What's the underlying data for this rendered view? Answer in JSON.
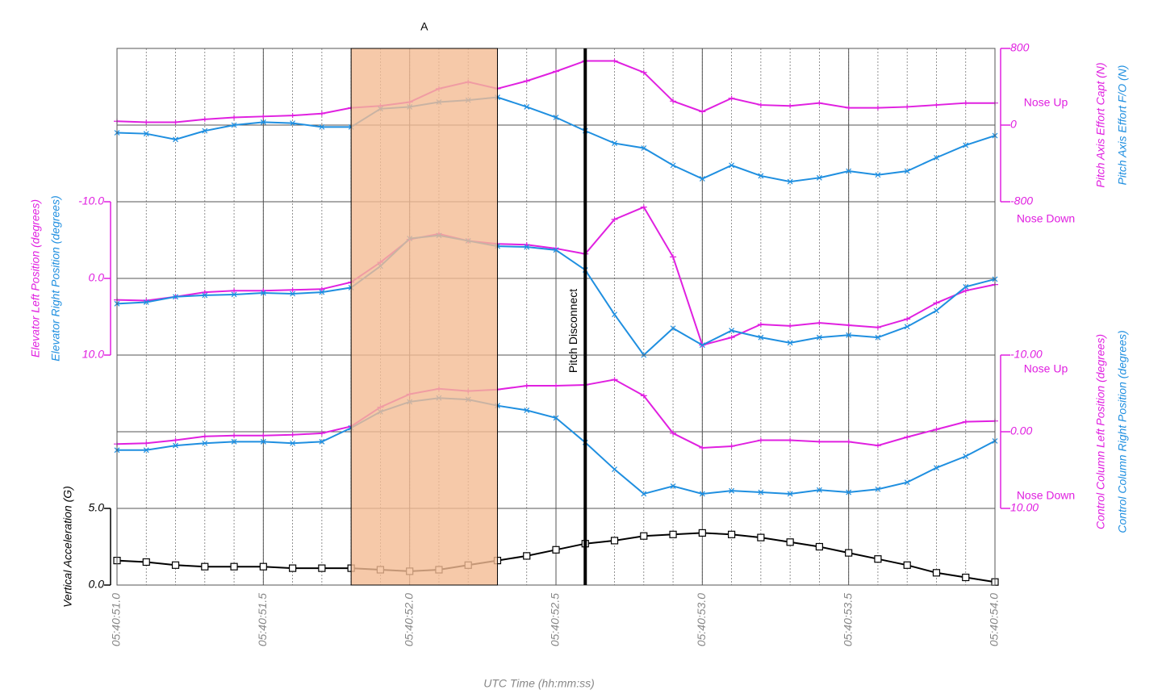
{
  "chart_data": {
    "type": "line",
    "x": [
      51.0,
      51.1,
      51.2,
      51.3,
      51.4,
      51.5,
      51.6,
      51.7,
      51.8,
      51.9,
      52.0,
      52.1,
      52.2,
      52.3,
      52.4,
      52.5,
      52.6,
      52.7,
      52.8,
      52.9,
      53.0,
      53.1,
      53.2,
      53.3,
      53.4,
      53.5,
      53.6,
      53.7,
      53.8,
      53.9,
      54.0
    ],
    "xlim": [
      51.0,
      54.0
    ],
    "xticks": [
      {
        "value": 51.0,
        "label": "05:40:51.0"
      },
      {
        "value": 51.5,
        "label": "05:40:51.5"
      },
      {
        "value": 52.0,
        "label": "05:40:52.0"
      },
      {
        "value": 52.5,
        "label": "05:40:52.5"
      },
      {
        "value": 53.0,
        "label": "05:40:53.0"
      },
      {
        "value": 53.5,
        "label": "05:40:53.5"
      },
      {
        "value": 54.0,
        "label": "05:40:54.0"
      }
    ],
    "x_label": "UTC Time (hh:mm:ss)",
    "highlight": {
      "xlim": [
        51.8,
        52.3
      ],
      "label": "A",
      "color": "#f4bc94"
    },
    "event": {
      "x": 52.6,
      "label": "Pitch Disconnect"
    },
    "panels": [
      {
        "axis_side": "right",
        "axis_color": "#e020e0",
        "ylim": [
          -800,
          800
        ],
        "yticks": [
          -800,
          0,
          800
        ],
        "annotations": [
          "Nose Up",
          "Nose Down"
        ],
        "series": [
          {
            "name": "Pitch Axis Effort Capt (N)",
            "color": "#e020e0",
            "marker": "plus",
            "values": [
              40,
              30,
              30,
              60,
              80,
              90,
              100,
              120,
              180,
              200,
              240,
              380,
              450,
              380,
              460,
              560,
              670,
              670,
              550,
              250,
              140,
              280,
              210,
              200,
              230,
              180,
              180,
              190,
              210,
              230,
              230
            ]
          },
          {
            "name": "Pitch Axis Effort F/O (N)",
            "color": "#1f8fe0",
            "marker": "x",
            "values": [
              -80,
              -90,
              -150,
              -60,
              0,
              30,
              20,
              -20,
              -20,
              170,
              190,
              240,
              260,
              290,
              190,
              80,
              -60,
              -190,
              -240,
              -420,
              -560,
              -420,
              -530,
              -590,
              -550,
              -480,
              -520,
              -480,
              -340,
              -210,
              -110
            ]
          }
        ]
      },
      {
        "axis_side": "left",
        "axis_color": "#e020e0",
        "ylim": [
          10,
          -10
        ],
        "yticks": [
          {
            "value": -10,
            "label": "-10.0"
          },
          {
            "value": 0,
            "label": "0.0"
          },
          {
            "value": 10,
            "label": "10.0"
          }
        ],
        "series": [
          {
            "name": "Elevator Left Position (degrees)",
            "color": "#e020e0",
            "marker": "plus",
            "values": [
              2.8,
              2.9,
              2.4,
              1.8,
              1.6,
              1.6,
              1.5,
              1.4,
              0.5,
              -2.1,
              -5.1,
              -5.8,
              -4.9,
              -4.5,
              -4.4,
              -3.9,
              -3.2,
              -7.7,
              -9.3,
              -2.8,
              8.7,
              7.7,
              6.0,
              6.2,
              5.8,
              6.1,
              6.4,
              5.3,
              3.2,
              1.6,
              0.8
            ]
          },
          {
            "name": "Elevator Right Position (degrees)",
            "color": "#1f8fe0",
            "marker": "x",
            "values": [
              3.3,
              3.1,
              2.4,
              2.2,
              2.1,
              1.9,
              2.0,
              1.8,
              1.2,
              -1.6,
              -5.2,
              -5.6,
              -4.9,
              -4.2,
              -4.1,
              -3.7,
              -1.1,
              4.7,
              10.0,
              6.5,
              8.7,
              6.8,
              7.7,
              8.4,
              7.7,
              7.4,
              7.7,
              6.3,
              4.2,
              1.1,
              0.1
            ]
          }
        ]
      },
      {
        "axis_side": "right",
        "axis_color": "#e020e0",
        "ylim": [
          10,
          -10
        ],
        "yticks": [
          {
            "value": -10,
            "label": "-10.00"
          },
          {
            "value": 0,
            "label": "0.00"
          },
          {
            "value": 10,
            "label": "10.00"
          }
        ],
        "annotations": [
          "Nose Up",
          "Nose Down"
        ],
        "series": [
          {
            "name": "Control Column Left Position (degrees)",
            "color": "#e020e0",
            "marker": "plus",
            "values": [
              1.6,
              1.5,
              1.1,
              0.6,
              0.5,
              0.5,
              0.4,
              0.2,
              -0.7,
              -3.2,
              -4.9,
              -5.6,
              -5.3,
              -5.5,
              -6.0,
              -6.0,
              -6.1,
              -6.8,
              -4.7,
              0.2,
              2.1,
              1.9,
              1.1,
              1.1,
              1.3,
              1.3,
              1.8,
              0.7,
              -0.3,
              -1.3,
              -1.4
            ]
          },
          {
            "name": "Control Column Right Position (degrees)",
            "color": "#1f8fe0",
            "marker": "x",
            "values": [
              2.4,
              2.4,
              1.8,
              1.5,
              1.3,
              1.3,
              1.5,
              1.3,
              -0.5,
              -2.6,
              -3.9,
              -4.4,
              -4.2,
              -3.4,
              -2.8,
              -1.8,
              1.4,
              4.9,
              8.1,
              7.1,
              8.1,
              7.7,
              7.9,
              8.1,
              7.6,
              7.9,
              7.5,
              6.6,
              4.7,
              3.2,
              1.2
            ]
          }
        ]
      },
      {
        "axis_side": "left",
        "axis_color": "#000000",
        "ylim": [
          0,
          5
        ],
        "yticks": [
          {
            "value": 0,
            "label": "0.0"
          },
          {
            "value": 5,
            "label": "5.0"
          }
        ],
        "series": [
          {
            "name": "Vertical Acceleration (G)",
            "color": "#000000",
            "marker": "square",
            "values": [
              1.6,
              1.5,
              1.3,
              1.2,
              1.2,
              1.2,
              1.1,
              1.1,
              1.1,
              1.0,
              0.9,
              1.0,
              1.3,
              1.6,
              1.9,
              2.3,
              2.7,
              2.9,
              3.2,
              3.3,
              3.4,
              3.3,
              3.1,
              2.8,
              2.5,
              2.1,
              1.7,
              1.3,
              0.8,
              0.5,
              0.2
            ]
          }
        ]
      }
    ]
  }
}
